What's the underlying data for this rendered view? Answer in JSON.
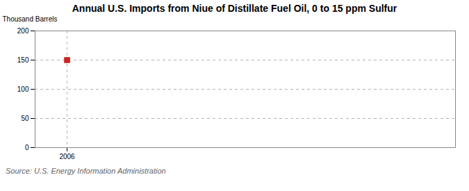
{
  "chart_data": {
    "type": "scatter",
    "title": "Annual U.S. Imports from Niue of Distillate Fuel Oil, 0 to 15 ppm Sulfur",
    "ylabel": "Thousand Barrels",
    "source": "Source: U.S. Energy Information Administration",
    "x": [
      2006
    ],
    "values": [
      150
    ],
    "color": "#cc2222",
    "marker": "square",
    "xlim": [
      2005.3,
      2014.5
    ],
    "xticks": [
      2006
    ],
    "ylim": [
      0,
      200
    ],
    "yticks": [
      0,
      50,
      100,
      150,
      200
    ],
    "grid": true
  }
}
